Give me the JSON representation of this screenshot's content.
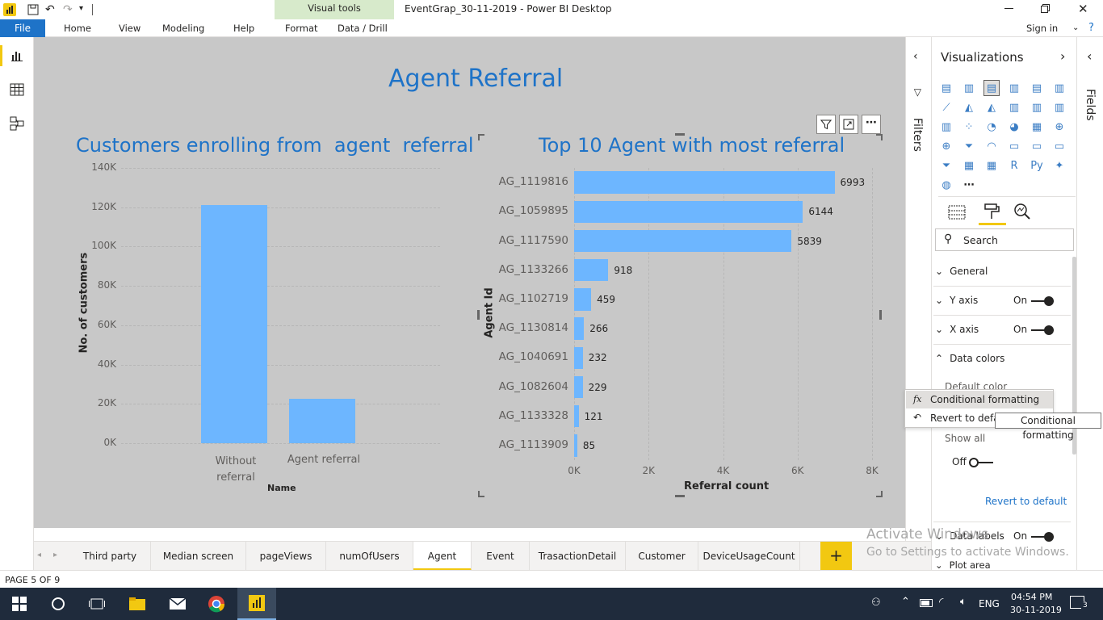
{
  "window": {
    "title": "EventGrap_30-11-2019 - Power BI Desktop",
    "contextual_tab_group": "Visual tools",
    "sign_in": "Sign in"
  },
  "ribbon": {
    "file": "File",
    "tabs": [
      "Home",
      "View",
      "Modeling",
      "Help",
      "Format",
      "Data / Drill"
    ]
  },
  "report": {
    "page_title": "Agent Referral"
  },
  "left_chart": {
    "title": "Customers enrolling from  agent  referral",
    "y_ticks": [
      "140K",
      "120K",
      "100K",
      "80K",
      "60K",
      "40K",
      "20K",
      "0K"
    ],
    "ylabel": "No. of customers",
    "xlabel": "Name",
    "category_labels": [
      "Without referral",
      "Agent referral"
    ]
  },
  "right_chart": {
    "title": "Top 10 Agent with most referral",
    "ylabel": "Agent Id",
    "xlabel": "Referral count",
    "x_ticks": [
      "0K",
      "2K",
      "4K",
      "6K",
      "8K"
    ]
  },
  "chart_data": [
    {
      "type": "bar",
      "title": "Customers enrolling from  agent  referral",
      "categories": [
        "Without referral",
        "Agent referral"
      ],
      "values": [
        121000,
        22500
      ],
      "xlabel": "Name",
      "ylabel": "No. of customers",
      "ylim": [
        0,
        140000
      ],
      "grid": true,
      "color": "#6db6ff"
    },
    {
      "type": "bar",
      "orientation": "horizontal",
      "title": "Top 10 Agent with most referral",
      "categories": [
        "AG_1119816",
        "AG_1059895",
        "AG_1117590",
        "AG_1133266",
        "AG_1102719",
        "AG_1130814",
        "AG_1040691",
        "AG_1082604",
        "AG_1133328",
        "AG_1113909"
      ],
      "values": [
        6993,
        6144,
        5839,
        918,
        459,
        266,
        232,
        229,
        121,
        85
      ],
      "xlabel": "Referral count",
      "ylabel": "Agent Id",
      "xlim": [
        0,
        8000
      ],
      "grid": true,
      "color": "#6db6ff"
    }
  ],
  "filters_label": "Filters",
  "fields_label": "Fields",
  "viz_pane": {
    "title": "Visualizations",
    "search_placeholder": "Search",
    "sections": {
      "general": "General",
      "y_axis": "Y axis",
      "y_axis_state": "On",
      "x_axis": "X axis",
      "x_axis_state": "On",
      "data_colors": "Data colors",
      "default_color": "Default color",
      "show_all": "Show all",
      "show_all_state": "Off",
      "revert": "Revert to default",
      "data_labels": "Data labels",
      "data_labels_state": "On",
      "plot_area": "Plot area"
    }
  },
  "context_menu": {
    "items": [
      "Conditional formatting",
      "Revert to defau"
    ],
    "tooltip": "Conditional formatting"
  },
  "page_tabs": [
    "Third party",
    "Median screen",
    "pageViews",
    "numOfUsers",
    "Agent",
    "Event",
    "TrasactionDetail",
    "Customer",
    "DeviceUsageCount"
  ],
  "active_page": "Agent",
  "status": "PAGE 5 OF 9",
  "watermark": {
    "line1": "Activate Windows",
    "line2": "Go to Settings to activate Windows."
  },
  "taskbar": {
    "lang": "ENG",
    "time": "04:54 PM",
    "date": "30-11-2019",
    "notifications": "3"
  },
  "colors": {
    "accent": "#1e73c8",
    "bar": "#6db6ff",
    "visual_tools": "#d7eacb",
    "active_tab": "#f2c811"
  }
}
